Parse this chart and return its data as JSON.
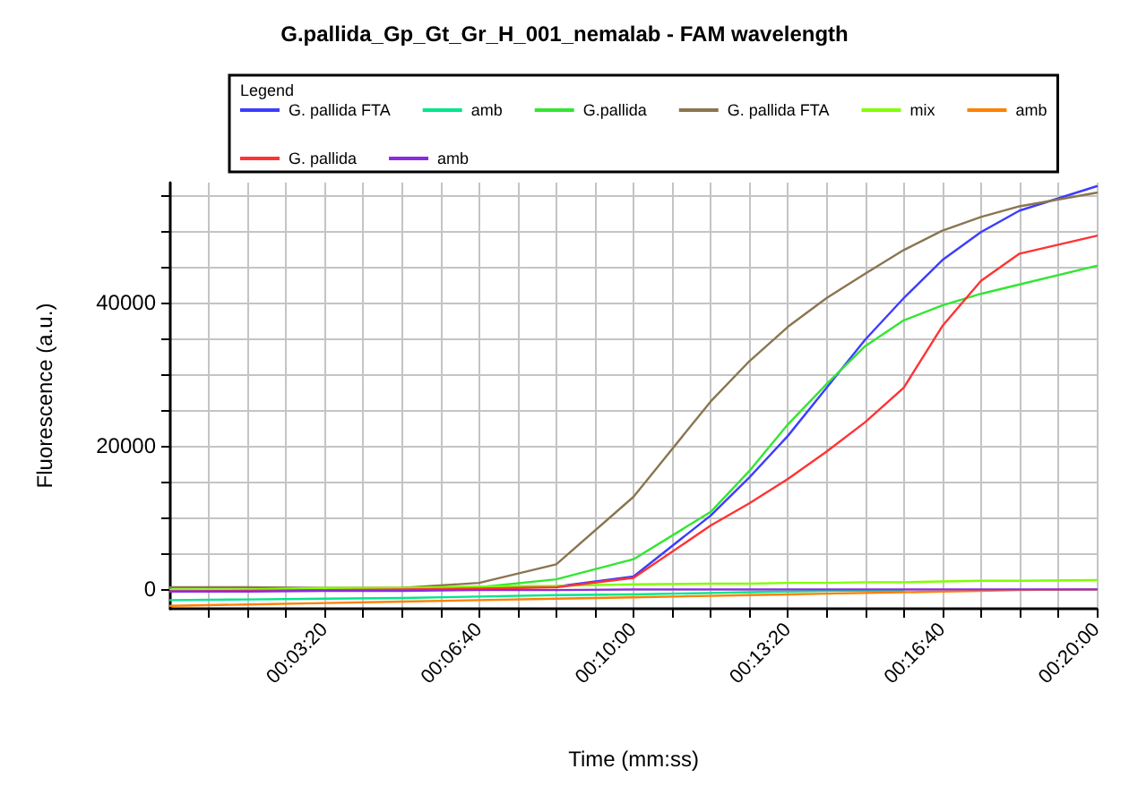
{
  "chart_data": {
    "type": "line",
    "title": "G.pallida_Gp_Gt_Gr_H_001_nemalab - FAM wavelength",
    "xlabel": "Time (mm:ss)",
    "ylabel": "Fluorescence (a.u.)",
    "legend_title": "Legend",
    "legend": "top",
    "grid": true,
    "marker": "none",
    "line_style": "solid",
    "xlim": [
      0,
      1200
    ],
    "ylim": [
      -2700,
      56700
    ],
    "xticks": [
      {
        "value": 50,
        "label": null
      },
      {
        "value": 100,
        "label": null
      },
      {
        "value": 150,
        "label": null
      },
      {
        "value": 200,
        "label": "00:03:20"
      },
      {
        "value": 250,
        "label": null
      },
      {
        "value": 300,
        "label": null
      },
      {
        "value": 350,
        "label": null
      },
      {
        "value": 400,
        "label": "00:06:40"
      },
      {
        "value": 450,
        "label": null
      },
      {
        "value": 500,
        "label": null
      },
      {
        "value": 550,
        "label": null
      },
      {
        "value": 600,
        "label": "00:10:00"
      },
      {
        "value": 650,
        "label": null
      },
      {
        "value": 700,
        "label": null
      },
      {
        "value": 750,
        "label": null
      },
      {
        "value": 800,
        "label": "00:13:20"
      },
      {
        "value": 850,
        "label": null
      },
      {
        "value": 900,
        "label": null
      },
      {
        "value": 950,
        "label": null
      },
      {
        "value": 1000,
        "label": "00:16:40"
      },
      {
        "value": 1050,
        "label": null
      },
      {
        "value": 1100,
        "label": null
      },
      {
        "value": 1150,
        "label": null
      },
      {
        "value": 1200,
        "label": "00:20:00"
      }
    ],
    "yticks": [
      0,
      {
        "value": 5000,
        "label": null
      },
      {
        "value": 10000,
        "label": null
      },
      {
        "value": 15000,
        "label": null
      },
      20000,
      {
        "value": 25000,
        "label": null
      },
      {
        "value": 30000,
        "label": null
      },
      {
        "value": 35000,
        "label": null
      },
      40000,
      {
        "value": 45000,
        "label": null
      },
      {
        "value": 50000,
        "label": null
      },
      {
        "value": 55000,
        "label": null
      }
    ],
    "x": [
      0,
      100,
      200,
      300,
      400,
      500,
      600,
      700,
      750,
      800,
      850,
      900,
      950,
      1000,
      1050,
      1100,
      1200
    ],
    "series": [
      {
        "name": "G. pallida FTA",
        "color": "#3d3dff",
        "values": [
          -300,
          -200,
          -100,
          0,
          100,
          400,
          1800,
          10300,
          15600,
          21400,
          28100,
          34800,
          40600,
          45900,
          49800,
          52800,
          56200
        ]
      },
      {
        "name": "amb",
        "color": "#00e68c",
        "values": [
          -1500,
          -1400,
          -1300,
          -1200,
          -1000,
          -800,
          -700,
          -500,
          -400,
          -300,
          -200,
          -200,
          -200,
          null,
          null,
          null,
          null
        ]
      },
      {
        "name": "G.pallida",
        "color": "#33e633",
        "values": [
          null,
          null,
          null,
          200,
          300,
          1400,
          4200,
          10800,
          16500,
          23000,
          28600,
          33900,
          37500,
          39600,
          41200,
          42500,
          45100
        ]
      },
      {
        "name": "G. pallida FTA",
        "color": "#8b7550",
        "values": [
          300,
          300,
          200,
          200,
          900,
          3500,
          12900,
          26200,
          31800,
          36600,
          40600,
          44000,
          47300,
          50000,
          51900,
          53400,
          55300
        ]
      },
      {
        "name": "mix",
        "color": "#80ff00",
        "values": [
          0,
          0,
          200,
          200,
          400,
          500,
          700,
          800,
          800,
          900,
          900,
          1000,
          1000,
          1100,
          1200,
          1200,
          1300
        ]
      },
      {
        "name": "amb",
        "color": "#ff8000",
        "values": [
          -2300,
          -2100,
          -1900,
          -1700,
          -1500,
          -1300,
          -1100,
          -900,
          -800,
          -700,
          -600,
          -500,
          -400,
          -300,
          -200,
          -100,
          0
        ]
      },
      {
        "name": "G. pallida",
        "color": "#ff3333",
        "values": [
          -300,
          -200,
          -100,
          0,
          100,
          300,
          1600,
          8900,
          12000,
          15400,
          19200,
          23300,
          28100,
          36700,
          43000,
          46800,
          49300
        ]
      },
      {
        "name": "amb",
        "color": "#8a2be2",
        "values": [
          -300,
          -300,
          -200,
          -200,
          -100,
          -100,
          0,
          0,
          0,
          0,
          0,
          0,
          0,
          0,
          0,
          0,
          0
        ]
      }
    ]
  }
}
